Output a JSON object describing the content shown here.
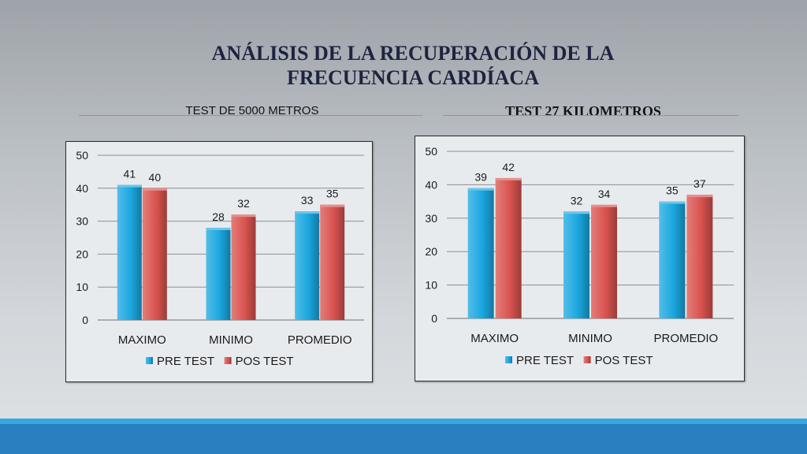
{
  "slide": {
    "title_line1": "ANÁLISIS DE LA RECUPERACIÓN DE LA",
    "title_line2": "FRECUENCIA CARDÍACA",
    "subtitle_left": "TEST DE 5000 METROS",
    "subtitle_right": "TEST 27 KILOMETROS"
  },
  "colors": {
    "pre_test": "#1aa7e0",
    "pos_test": "#d9534f",
    "footer": "#2a7fc0",
    "accent": "#33a9dc"
  },
  "chart_data": [
    {
      "type": "bar",
      "categories": [
        "MAXIMO",
        "MINIMO",
        "PROMEDIO"
      ],
      "series": [
        {
          "name": "PRE TEST",
          "values": [
            41,
            28,
            33
          ],
          "color": "#1aa7e0"
        },
        {
          "name": "POS TEST",
          "values": [
            40,
            32,
            35
          ],
          "color": "#d9534f"
        }
      ],
      "ylim": [
        0,
        50
      ],
      "yticks": [
        0,
        10,
        20,
        30,
        40,
        50
      ],
      "grid": true,
      "legend": "bottom",
      "data_labels": true
    },
    {
      "type": "bar",
      "categories": [
        "MAXIMO",
        "MINIMO",
        "PROMEDIO"
      ],
      "series": [
        {
          "name": "PRE TEST",
          "values": [
            39,
            32,
            35
          ],
          "color": "#1aa7e0"
        },
        {
          "name": "POS TEST",
          "values": [
            42,
            34,
            37
          ],
          "color": "#d9534f"
        }
      ],
      "ylim": [
        0,
        50
      ],
      "yticks": [
        0,
        10,
        20,
        30,
        40,
        50
      ],
      "grid": true,
      "legend": "bottom",
      "data_labels": true
    }
  ]
}
